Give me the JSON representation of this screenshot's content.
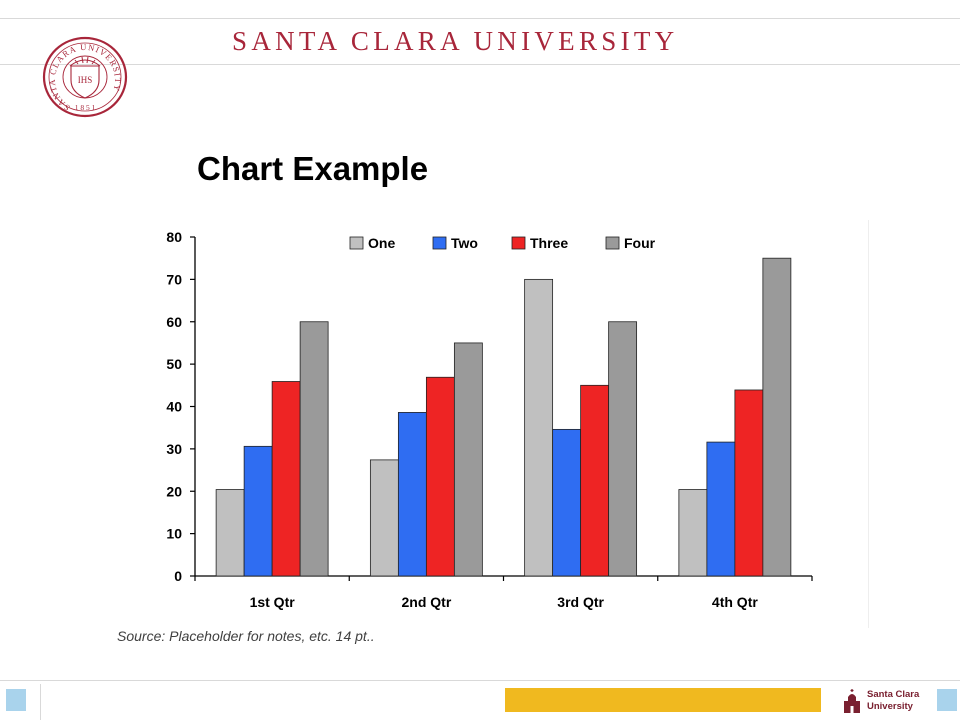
{
  "header": {
    "university_name": "SANTA CLARA UNIVERSITY",
    "seal": {
      "ring_text": "SANTA CLARA UNIVERSITY",
      "year": "1 8 5 1",
      "monogram": "IHS"
    }
  },
  "slide": {
    "title": "Chart Example",
    "source_note": "Source: Placeholder for notes, etc. 14 pt.."
  },
  "footer": {
    "logo_line1": "Santa Clara",
    "logo_line2": "University"
  },
  "colors": {
    "brand_red": "#a8263a",
    "series_one": "#c0c0c0",
    "series_two": "#2f6df2",
    "series_three": "#ee2424",
    "series_four": "#9a9a9a",
    "footer_gold": "#f0b91f",
    "footer_blue": "#a9d3ec"
  },
  "chart_data": {
    "type": "bar",
    "title": "",
    "xlabel": "",
    "ylabel": "",
    "categories": [
      "1st Qtr",
      "2nd Qtr",
      "3rd Qtr",
      "4th Qtr"
    ],
    "ylim": [
      0,
      80
    ],
    "yticks": [
      0,
      10,
      20,
      30,
      40,
      50,
      60,
      70,
      80
    ],
    "legend_position": "top",
    "series": [
      {
        "name": "One",
        "color": "#c0c0c0",
        "values": [
          20.4,
          27.4,
          70,
          20.4
        ]
      },
      {
        "name": "Two",
        "color": "#2f6df2",
        "values": [
          30.6,
          38.6,
          34.6,
          31.6
        ]
      },
      {
        "name": "Three",
        "color": "#ee2424",
        "values": [
          45.9,
          46.9,
          45,
          43.9
        ]
      },
      {
        "name": "Four",
        "color": "#9a9a9a",
        "values": [
          60,
          55,
          60,
          75
        ]
      }
    ]
  }
}
